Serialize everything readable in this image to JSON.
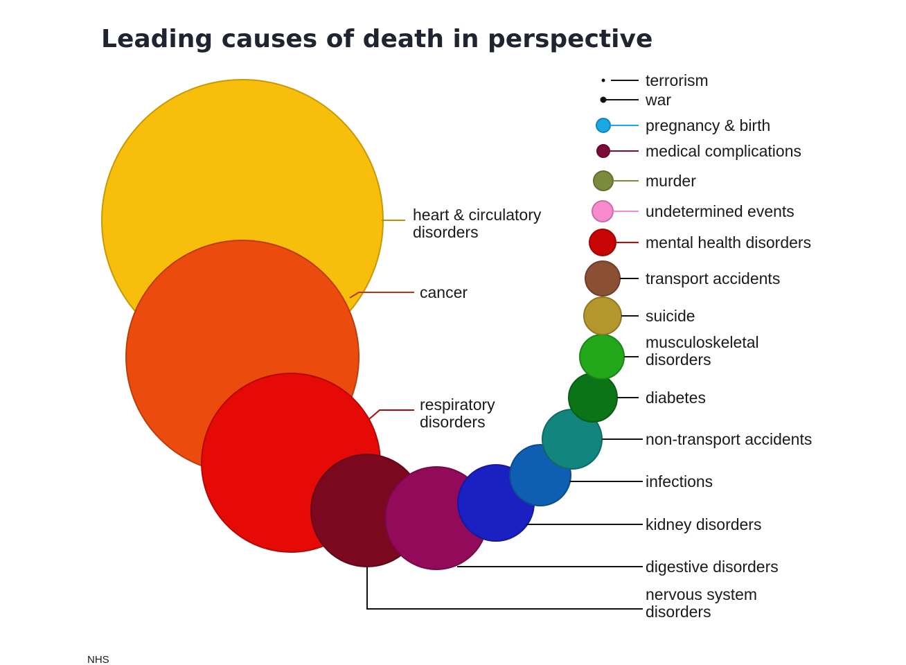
{
  "title": "Leading causes of death in perspective",
  "source": "NHS",
  "causes": [
    {
      "id": "heart",
      "label": [
        "heart & circulatory",
        "disorders"
      ],
      "color": "#F7BF0C"
    },
    {
      "id": "cancer",
      "label": [
        "cancer"
      ],
      "color": "#EC4B0E"
    },
    {
      "id": "respiratory",
      "label": [
        "respiratory",
        "disorders"
      ],
      "color": "#E50A06"
    },
    {
      "id": "nervous",
      "label": [
        "nervous system",
        "disorders"
      ],
      "color": "#7C0820"
    },
    {
      "id": "digestive",
      "label": [
        "digestive disorders"
      ],
      "color": "#930A5A"
    },
    {
      "id": "kidney",
      "label": [
        "kidney disorders"
      ],
      "color": "#1A20C2"
    },
    {
      "id": "infections",
      "label": [
        "infections"
      ],
      "color": "#0E5EB2"
    },
    {
      "id": "non-transport",
      "label": [
        "non-transport accidents"
      ],
      "color": "#12857E"
    },
    {
      "id": "diabetes",
      "label": [
        "diabetes"
      ],
      "color": "#0A7416"
    },
    {
      "id": "musculoskeletal",
      "label": [
        "musculoskeletal",
        "disorders"
      ],
      "color": "#22A81A"
    },
    {
      "id": "suicide",
      "label": [
        "suicide"
      ],
      "color": "#B3962C"
    },
    {
      "id": "transport",
      "label": [
        "transport accidents"
      ],
      "color": "#8B4F33"
    },
    {
      "id": "mental",
      "label": [
        "mental health disorders"
      ],
      "color": "#C70505"
    },
    {
      "id": "undetermined",
      "label": [
        "undetermined events"
      ],
      "color": "#F78BCE"
    },
    {
      "id": "murder",
      "label": [
        "murder"
      ],
      "color": "#7C8A3E"
    },
    {
      "id": "medical",
      "label": [
        "medical complications"
      ],
      "color": "#7C0A3A"
    },
    {
      "id": "pregnancy",
      "label": [
        "pregnancy & birth"
      ],
      "color": "#19A8E3"
    },
    {
      "id": "war",
      "label": [
        "war"
      ],
      "color": "#111111"
    },
    {
      "id": "terrorism",
      "label": [
        "terrorism"
      ],
      "color": "#111111"
    }
  ]
}
